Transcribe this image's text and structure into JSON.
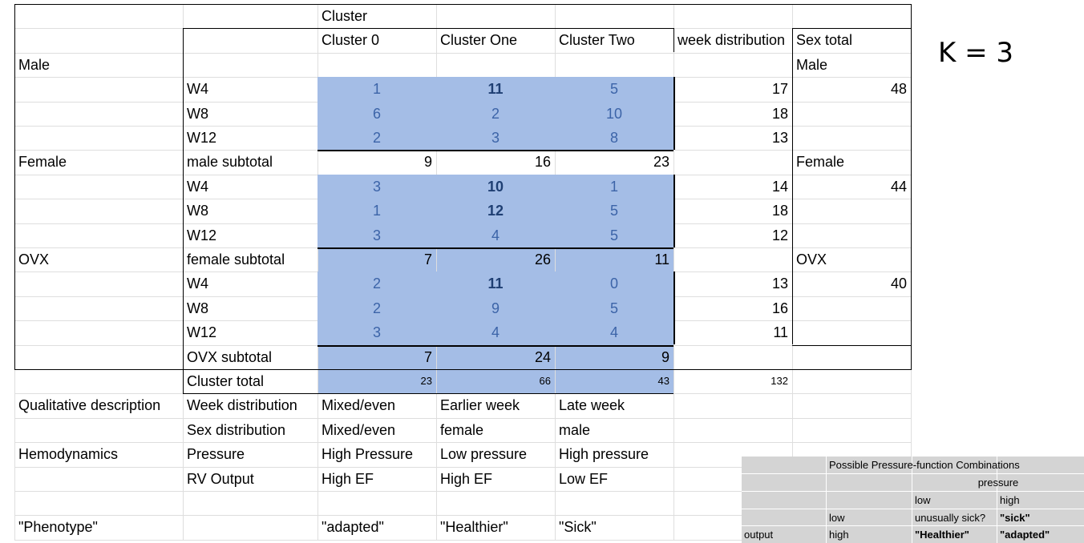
{
  "k_label": "K = 3",
  "sheet": {
    "header_top": "Cluster",
    "cluster_headers": [
      "Cluster 0",
      "Cluster One",
      "Cluster Two"
    ],
    "week_distribution_header": "week distribution",
    "sex_total_header": "Sex total",
    "groups": [
      {
        "label": "Male",
        "weeks": [
          {
            "week": "W4",
            "values": [
              "1",
              "11",
              "5"
            ],
            "bold": [
              false,
              true,
              false
            ],
            "total": "17"
          },
          {
            "week": "W8",
            "values": [
              "6",
              "2",
              "10"
            ],
            "bold": [
              false,
              false,
              false
            ],
            "total": "18"
          },
          {
            "week": "W12",
            "values": [
              "2",
              "3",
              "8"
            ],
            "bold": [
              false,
              false,
              false
            ],
            "total": "13"
          }
        ],
        "subtotal_label": "male subtotal",
        "subtotals": [
          "9",
          "16",
          "23"
        ],
        "sex_label": "Male",
        "sex_total": "48"
      },
      {
        "label": "Female",
        "weeks": [
          {
            "week": "W4",
            "values": [
              "3",
              "10",
              "1"
            ],
            "bold": [
              false,
              true,
              false
            ],
            "total": "14"
          },
          {
            "week": "W8",
            "values": [
              "1",
              "12",
              "5"
            ],
            "bold": [
              false,
              true,
              false
            ],
            "total": "18"
          },
          {
            "week": "W12",
            "values": [
              "3",
              "4",
              "5"
            ],
            "bold": [
              false,
              false,
              false
            ],
            "total": "12"
          }
        ],
        "subtotal_label": "female subtotal",
        "subtotals": [
          "7",
          "26",
          "11"
        ],
        "sex_label": "Female",
        "sex_total": "44"
      },
      {
        "label": "OVX",
        "weeks": [
          {
            "week": "W4",
            "values": [
              "2",
              "11",
              "0"
            ],
            "bold": [
              false,
              true,
              false
            ],
            "total": "13"
          },
          {
            "week": "W8",
            "values": [
              "2",
              "9",
              "5"
            ],
            "bold": [
              false,
              false,
              false
            ],
            "total": "16"
          },
          {
            "week": "W12",
            "values": [
              "3",
              "4",
              "4"
            ],
            "bold": [
              false,
              false,
              false
            ],
            "total": "11"
          }
        ],
        "subtotal_label": "OVX subtotal",
        "subtotals": [
          "7",
          "24",
          "9"
        ],
        "sex_label": "OVX",
        "sex_total": "40"
      }
    ],
    "cluster_total_label": "Cluster total",
    "cluster_totals": [
      "23",
      "66",
      "43"
    ],
    "grand_total": "132",
    "descriptions": [
      {
        "section": "Qualitative description",
        "label": "Week distribution",
        "values": [
          "Mixed/even",
          "Earlier week",
          "Late week"
        ]
      },
      {
        "section": "",
        "label": "Sex distribution",
        "values": [
          "Mixed/even",
          "female",
          "male"
        ]
      },
      {
        "section": "Hemodynamics",
        "label": "Pressure",
        "values": [
          "High Pressure",
          "Low pressure",
          "High pressure"
        ]
      },
      {
        "section": "",
        "label": "RV Output",
        "values": [
          "High EF",
          "High EF",
          "Low EF"
        ]
      }
    ],
    "phenotype": {
      "label": "\"Phenotype\"",
      "values": [
        "\"adapted\"",
        "\"Healthier\"",
        "\"Sick\""
      ]
    }
  },
  "inset": {
    "title": "Possible Pressure-function Combinations",
    "pressure_label": "pressure",
    "low": "low",
    "high": "high",
    "output_label": "output",
    "row_low": {
      "label": "low",
      "values": [
        "unusually sick?",
        "\"sick\""
      ]
    },
    "row_high": {
      "label": "high",
      "values": [
        "\"Healthier\"",
        "\"adapted\""
      ]
    }
  }
}
